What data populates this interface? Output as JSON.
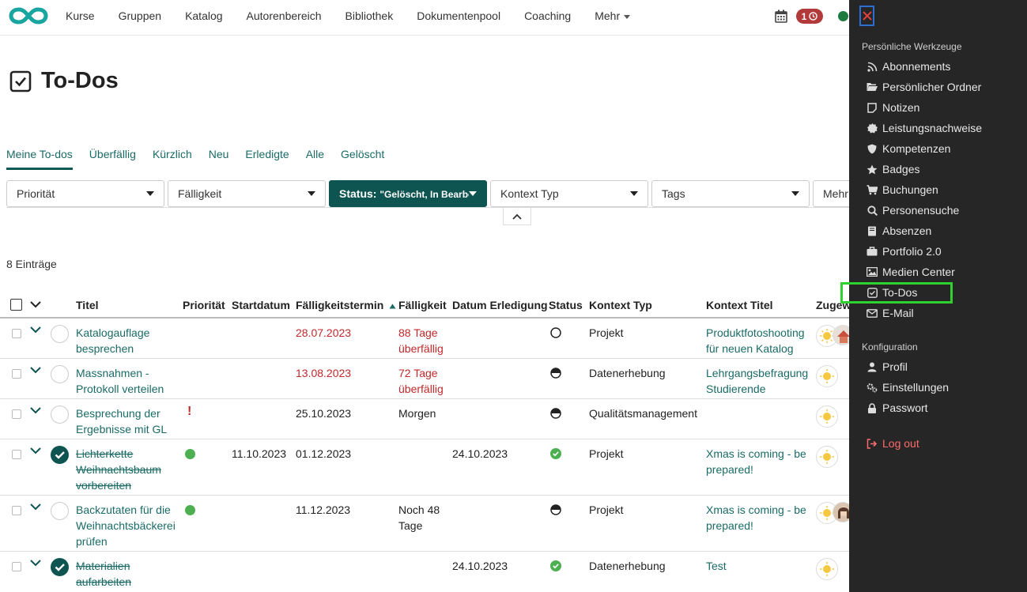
{
  "nav": {
    "items": [
      "Kurse",
      "Gruppen",
      "Katalog",
      "Autorenbereich",
      "Bibliothek",
      "Dokumentenpool",
      "Coaching",
      "Mehr"
    ],
    "notification_count": "1"
  },
  "page": {
    "title": "To-Dos"
  },
  "tabs": [
    "Meine To-dos",
    "Überfällig",
    "Kürzlich",
    "Neu",
    "Erledigte",
    "Alle",
    "Gelöscht"
  ],
  "filters": {
    "prioritaet": "Priorität",
    "faelligkeit": "Fälligkeit",
    "status_label": "Status:",
    "status_value": "\"Gelöscht, In Bearbeit...",
    "kontext_typ": "Kontext Typ",
    "tags": "Tags",
    "mehr": "Mehr"
  },
  "count": "8 Einträge",
  "table": {
    "headers": {
      "titel": "Titel",
      "prioritaet": "Priorität",
      "startdatum": "Startdatum",
      "faelligkeitstermin": "Fälligkeitstermin",
      "faelligkeit": "Fälligkeit",
      "datum_erledigung": "Datum Erledigung",
      "status": "Status",
      "kontext_typ": "Kontext Typ",
      "kontext_titel": "Kontext Titel",
      "zugewiesen": "Zugew"
    },
    "rows": [
      {
        "title1": "Katalogauflage",
        "title2": "besprechen",
        "title3": "",
        "start": "",
        "due": "28.07.2023",
        "due1": "88 Tage",
        "due2": "überfällig",
        "done": "",
        "ctx_type": "Projekt",
        "ctx1": "Produktfotoshooting",
        "ctx2": "für neuen Katalog"
      },
      {
        "title1": "Massnahmen -",
        "title2": "Protokoll verteilen",
        "title3": "",
        "start": "",
        "due": "13.08.2023",
        "due1": "72 Tage",
        "due2": "überfällig",
        "done": "",
        "ctx_type": "Datenerhebung",
        "ctx1": "Lehrgangsbefragung",
        "ctx2": "Studierende"
      },
      {
        "title1": "Besprechung der",
        "title2": "Ergebnisse mit GL",
        "title3": "",
        "prio": "!",
        "start": "",
        "due": "25.10.2023",
        "due1": "Morgen",
        "due2": "",
        "done": "",
        "ctx_type": "Qualitätsmanagement",
        "ctx1": "",
        "ctx2": ""
      },
      {
        "title1": "Lichterkette",
        "title2": "Weihnachtsbaum",
        "title3": "vorbereiten",
        "start": "11.10.2023",
        "due": "01.12.2023",
        "due1": "",
        "due2": "",
        "done": "24.10.2023",
        "ctx_type": "Projekt",
        "ctx1": "Xmas is coming - be",
        "ctx2": "prepared!"
      },
      {
        "title1": "Backzutaten für die",
        "title2": "Weihnachtsbäckerei",
        "title3": "prüfen",
        "start": "",
        "due": "11.12.2023",
        "due1": "Noch 48",
        "due2": "Tage",
        "done": "",
        "ctx_type": "Projekt",
        "ctx1": "Xmas is coming - be",
        "ctx2": "prepared!"
      },
      {
        "title1": "Materialien",
        "title2": "aufarbeiten",
        "title3": "",
        "start": "",
        "due": "",
        "due1": "",
        "due2": "",
        "done": "24.10.2023",
        "ctx_type": "Datenerhebung",
        "ctx1": "Test",
        "ctx2": ""
      }
    ]
  },
  "sidebar": {
    "section1": "Persönliche Werkzeuge",
    "items": [
      "Abonnements",
      "Persönlicher Ordner",
      "Notizen",
      "Leistungsnachweise",
      "Kompetenzen",
      "Badges",
      "Buchungen",
      "Personensuche",
      "Absenzen",
      "Portfolio 2.0",
      "Medien Center",
      "To-Dos",
      "E-Mail"
    ],
    "section2": "Konfiguration",
    "config_items": [
      "Profil",
      "Einstellungen",
      "Passwort"
    ],
    "logout": "Log out"
  }
}
